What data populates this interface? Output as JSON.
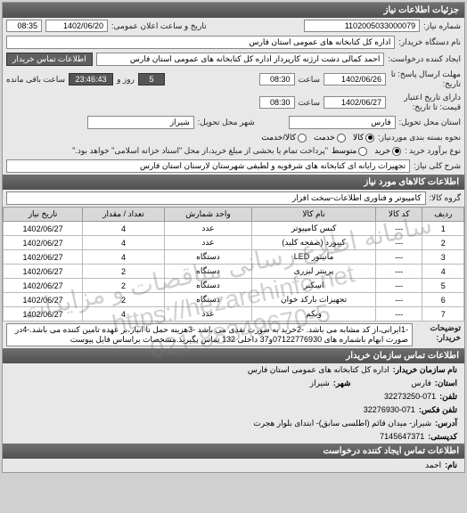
{
  "watermark": {
    "line1": "سامانه اطلاع رسانی مناقصات و مزایدات",
    "line2": "https://hezarehinfo.net",
    "line3": "021-88349670-5"
  },
  "sections": {
    "need_info": "جزئیات اطلاعات نیاز",
    "goods_info": "اطلاعات کالاهای مورد نیاز",
    "explanations": "توضیحات\nخریدار:",
    "buyer_contact": "اطلاعات تماس سازمان خریدار",
    "request_contact": "اطلاعات تماس ایجاد کننده درخواست"
  },
  "labels": {
    "request_no": "شماره نیاز:",
    "announce_datetime": "تاریخ و ساعت اعلان عمومی:",
    "buyer_org": "نام دستگاه خریدار:",
    "creator": "ایجاد کننده درخواست:",
    "buyer_contact_btn": "اطلاعات تماس خریدار",
    "response_deadline": "مهلت ارسال پاسخ: تا\nتاریخ:",
    "validity_to": "دارای تاریخ اعتبار\nقیمت: تا تاریخ:",
    "hour": "ساعت",
    "remaining": "روز و",
    "remaining_time": "ساعت باقی مانده",
    "delivery_province": "استان محل تحویل:",
    "delivery_city": "شهر محل تحویل:",
    "package_required": "نحوه بسته بندی موردنیاز:",
    "buy_type": "نوع برآورد خرید :",
    "need_desc": "شرح کلی نیاز:",
    "goods_group": "گروه کالا:",
    "org_name": "نام سازمان خریدار:",
    "province": "استان:",
    "city": "شهر:",
    "phone": "تلفن:",
    "fax": "تلفن فکس:",
    "address": "آدرس:",
    "postal": "کدپستی:",
    "name": "نام:"
  },
  "values": {
    "request_no": "1102005033000079",
    "announce_date": "1402/06/20",
    "announce_time": "08:35",
    "buyer_org": "اداره کل کتابخانه های عمومی استان فارس",
    "creator": "احمد  کمالی دشت ارژنه  کارپرداز اداره کل کتابخانه های عمومی استان فارس",
    "deadline_date": "1402/06/26",
    "deadline_time": "08:30",
    "remaining_days": "5",
    "remaining_clock": "23:46:43",
    "validity_date": "1402/06/27",
    "validity_time": "08:30",
    "province": "فارس",
    "city": "شیراز",
    "need_desc": "تجهیزات رایانه ای کتابخانه های شرفویه و لطیفی شهرستان لارستان استان فارس",
    "goods_group": "کامپیوتر و فناوری اطلاعات-سخت افزار",
    "explanation": "-1ایرانی،از کد مشابه می باشد. -2خرید به صورت نقدی می باشد -3هزینه حمل تا انبار،بر عهده تامین کننده می باشد.-4در صورت ابهام باشماره های 07122776930و37 داخلی 132 تماس بگیرید.مشخصات براساس فایل پیوست",
    "contact_org": "اداره کل کتابخانه های عمومی استان فارس",
    "contact_province": "فارس",
    "contact_city": "شیراز",
    "contact_phone": "32273250-071",
    "contact_fax": "32276930-071",
    "contact_address": "شیراز- میدان قائم (اطلسی سابق)- ابتدای بلوار هجرت",
    "contact_postal": "7145647371",
    "req_creator_name": "احمد"
  },
  "radios": {
    "packaging": [
      {
        "label": "کالا",
        "selected": true
      },
      {
        "label": "خدمت",
        "selected": false
      },
      {
        "label": "کالا/خدمت",
        "selected": false
      }
    ],
    "buy_type": [
      {
        "label": "خرید",
        "selected": true
      },
      {
        "label": "متوسط",
        "selected": false
      }
    ],
    "buy_note": "\"پرداخت تمام یا بخشی از مبلغ خرید،از محل \"اسناد خزانه اسلامی\" خواهد بود.\""
  },
  "table": {
    "headers": [
      "ردیف",
      "کد کالا",
      "نام کالا",
      "واحد شمارش",
      "تعداد / مقدار",
      "تاریخ نیاز"
    ],
    "rows": [
      [
        "1",
        "---",
        "کیس کامپیوتر",
        "عدد",
        "4",
        "1402/06/27"
      ],
      [
        "2",
        "---",
        "کیبورد (صفحه کلید)",
        "عدد",
        "4",
        "1402/06/27"
      ],
      [
        "3",
        "---",
        "مانیتور LED",
        "دستگاه",
        "4",
        "1402/06/27"
      ],
      [
        "4",
        "---",
        "پرینتر لیزری",
        "دستگاه",
        "2",
        "1402/06/27"
      ],
      [
        "5",
        "---",
        "اسکنر",
        "دستگاه",
        "2",
        "1402/06/27"
      ],
      [
        "6",
        "---",
        "تجهیزات بارکد خوان",
        "دستگاه",
        "2",
        "1402/06/27"
      ],
      [
        "7",
        "---",
        "وبکم",
        "عدد",
        "4",
        "1402/06/27"
      ]
    ]
  }
}
